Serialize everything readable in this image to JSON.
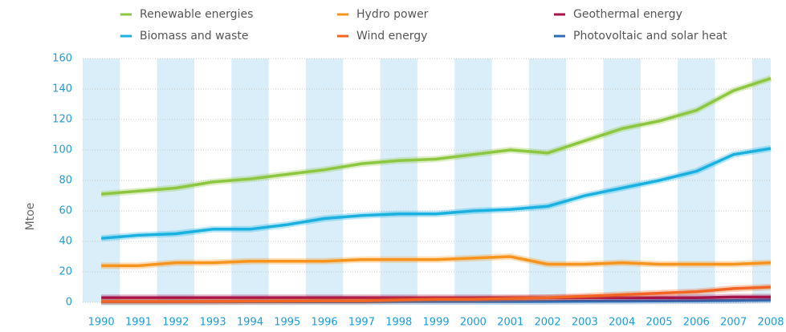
{
  "chart_data": {
    "type": "line",
    "y_label": "Mtoe",
    "x": [
      "1990",
      "1991",
      "1992",
      "1993",
      "1994",
      "1995",
      "1996",
      "1997",
      "1998",
      "1999",
      "2000",
      "2001",
      "2002",
      "2003",
      "2004",
      "2005",
      "2006",
      "2007",
      "2008"
    ],
    "ylim": [
      0,
      160
    ],
    "yticks": [
      0,
      20,
      40,
      60,
      80,
      100,
      120,
      140,
      160
    ],
    "series": [
      {
        "name": "Renewable energies",
        "color": "#8dc63f",
        "values": [
          71,
          73,
          75,
          79,
          81,
          84,
          87,
          91,
          93,
          94,
          97,
          100,
          98,
          106,
          114,
          119,
          126,
          139,
          147
        ]
      },
      {
        "name": "Biomass and waste",
        "color": "#1ab0e0",
        "values": [
          42,
          44,
          45,
          48,
          48,
          51,
          55,
          57,
          58,
          58,
          60,
          61,
          63,
          70,
          75,
          80,
          86,
          97,
          101
        ]
      },
      {
        "name": "Hydro power",
        "color": "#f7941d",
        "values": [
          24,
          24,
          26,
          26,
          27,
          27,
          27,
          28,
          28,
          28,
          29,
          30,
          25,
          25,
          26,
          25,
          25,
          25,
          26
        ]
      },
      {
        "name": "Wind energy",
        "color": "#f26522",
        "values": [
          0.5,
          0.5,
          0.5,
          0.6,
          0.7,
          0.8,
          1,
          1,
          1.5,
          2,
          2,
          2.5,
          3,
          4,
          5,
          6,
          7,
          9,
          10
        ]
      },
      {
        "name": "Geothermal energy",
        "color": "#a6124b",
        "values": [
          3,
          3,
          3,
          3,
          3,
          3,
          3,
          3,
          3,
          3,
          3,
          3,
          3,
          3,
          3,
          3,
          3,
          3.5,
          3.5
        ]
      },
      {
        "name": "Photovoltaic and solar heat",
        "color": "#2e6db4",
        "values": [
          0.3,
          0.3,
          0.3,
          0.3,
          0.4,
          0.4,
          0.4,
          0.4,
          0.5,
          0.5,
          0.5,
          0.5,
          0.6,
          0.7,
          0.8,
          0.9,
          1,
          1.2,
          1.5
        ]
      }
    ]
  }
}
